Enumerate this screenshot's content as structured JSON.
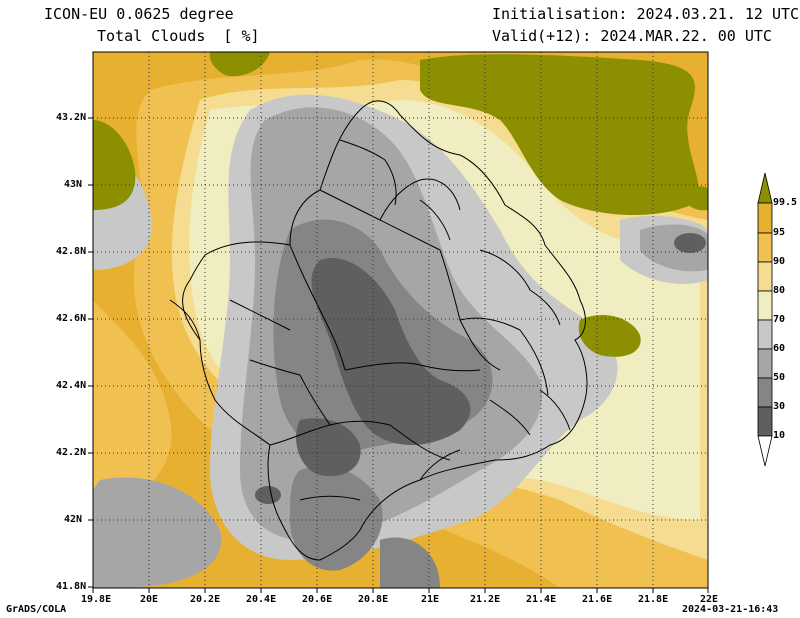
{
  "header": {
    "model": "ICON-EU 0.0625 degree",
    "field": "Total Clouds  [ %]",
    "init": "Initialisation: 2024.03.21. 12 UTC",
    "valid": "Valid(+12): 2024.MAR.22. 00 UTC"
  },
  "axes": {
    "y_ticks": [
      "43.2N",
      "43N",
      "42.8N",
      "42.6N",
      "42.4N",
      "42.2N",
      "42N",
      "41.8N"
    ],
    "x_ticks": [
      "19.8E",
      "20E",
      "20.2E",
      "20.4E",
      "20.6E",
      "20.8E",
      "21E",
      "21.2E",
      "21.4E",
      "21.6E",
      "21.8E",
      "22E"
    ]
  },
  "colorbar": {
    "labels": [
      "99.5",
      "95",
      "90",
      "80",
      "70",
      "60",
      "50",
      "30",
      "10"
    ],
    "colors": [
      "#8c9000",
      "#e8b030",
      "#f0c050",
      "#f5dc90",
      "#f0eec0",
      "#c8c8c8",
      "#a6a6a6",
      "#858585",
      "#5f5f5f",
      "#ffffff"
    ]
  },
  "footer": {
    "credit": "GrADS/COLA",
    "timestamp": "2024-03-21-16:43"
  },
  "palette": {
    "olive": "#8c9000",
    "orange": "#e8b030",
    "gold": "#f0c050",
    "lightgold": "#f5dc90",
    "cream": "#f0eec0",
    "lightgray": "#c8c8c8",
    "gray": "#a6a6a6",
    "darkgray": "#858585",
    "darker": "#5f5f5f",
    "border": "#000000"
  }
}
